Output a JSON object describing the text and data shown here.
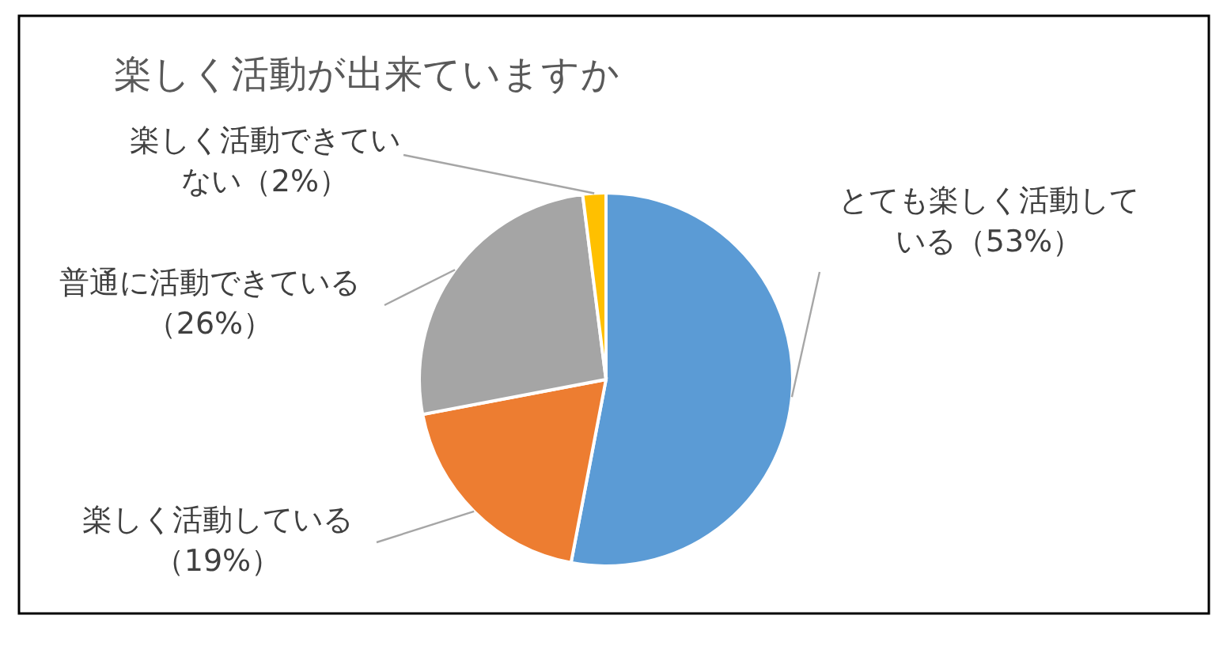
{
  "chart_data": {
    "type": "pie",
    "title": "楽しく活動が出来ていますか",
    "categories": [
      "とても楽しく活動している",
      "楽しく活動している",
      "普通に活動できている",
      "楽しく活動できていない"
    ],
    "values": [
      53,
      19,
      26,
      2
    ],
    "value_labels": [
      "（53%）",
      "（19%）",
      "（26%）",
      "（2%）"
    ],
    "colors": [
      "#5b9bd5",
      "#ed7d31",
      "#a5a5a5",
      "#ffc000"
    ],
    "legend": false
  }
}
